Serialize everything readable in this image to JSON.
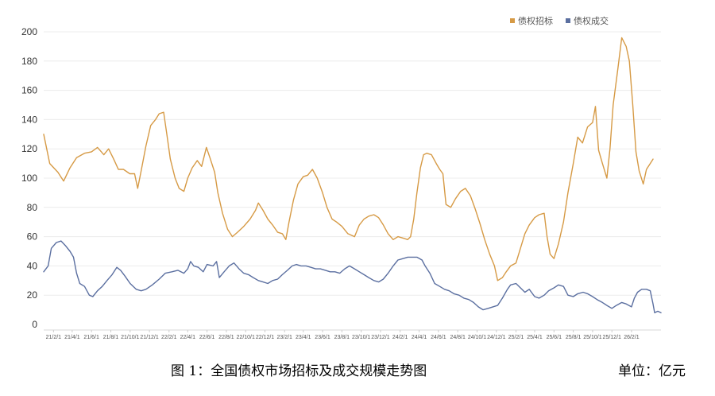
{
  "caption": {
    "title": "图 1：全国债权市场招标及成交规模走势图",
    "unit": "单位：亿元"
  },
  "chart_data": {
    "type": "line",
    "title": "",
    "xlabel": "",
    "ylabel": "",
    "ylim": [
      0,
      200
    ],
    "yticks": [
      0,
      20,
      40,
      60,
      80,
      100,
      120,
      140,
      160,
      180,
      200
    ],
    "grid": true,
    "legend_position": "top-right",
    "x_tick_labels": [
      "21/2/1",
      "21/4/1",
      "21/6/1",
      "21/8/1",
      "21/10/1",
      "21/12/1",
      "22/2/1",
      "22/4/1",
      "22/6/1",
      "22/8/1",
      "22/10/1",
      "22/12/1",
      "23/2/1",
      "23/4/1",
      "23/6/1",
      "23/8/1",
      "23/10/1",
      "23/12/1",
      "24/2/1",
      "24/4/1",
      "24/6/1",
      "24/8/1",
      "24/10/1",
      "24/12/1",
      "25/2/1",
      "25/4/1",
      "25/6/1",
      "25/8/1",
      "25/10/1",
      "25/12/1",
      "26/2/1"
    ],
    "series": [
      {
        "name": "债权招标",
        "color": "#D69A45",
        "points": [
          [
            "2021-01-01",
            130
          ],
          [
            "2021-01-20",
            110
          ],
          [
            "2021-02-15",
            104
          ],
          [
            "2021-03-05",
            98
          ],
          [
            "2021-03-25",
            107
          ],
          [
            "2021-04-15",
            114
          ],
          [
            "2021-05-10",
            117
          ],
          [
            "2021-06-01",
            118
          ],
          [
            "2021-06-20",
            121
          ],
          [
            "2021-07-10",
            116
          ],
          [
            "2021-07-25",
            120
          ],
          [
            "2021-08-10",
            113
          ],
          [
            "2021-08-25",
            106
          ],
          [
            "2021-09-10",
            106
          ],
          [
            "2021-09-30",
            103
          ],
          [
            "2021-10-15",
            103
          ],
          [
            "2021-10-25",
            93
          ],
          [
            "2021-11-05",
            105
          ],
          [
            "2021-11-20",
            122
          ],
          [
            "2021-12-05",
            136
          ],
          [
            "2021-12-20",
            140
          ],
          [
            "2022-01-01",
            144
          ],
          [
            "2022-01-15",
            145
          ],
          [
            "2022-01-25",
            130
          ],
          [
            "2022-02-05",
            113
          ],
          [
            "2022-02-20",
            100
          ],
          [
            "2022-03-05",
            93
          ],
          [
            "2022-03-20",
            91
          ],
          [
            "2022-04-01",
            100
          ],
          [
            "2022-04-15",
            107
          ],
          [
            "2022-05-01",
            112
          ],
          [
            "2022-05-15",
            108
          ],
          [
            "2022-05-30",
            121
          ],
          [
            "2022-06-10",
            114
          ],
          [
            "2022-06-25",
            104
          ],
          [
            "2022-07-05",
            90
          ],
          [
            "2022-07-20",
            76
          ],
          [
            "2022-08-05",
            65
          ],
          [
            "2022-08-20",
            60
          ],
          [
            "2022-09-05",
            63
          ],
          [
            "2022-09-25",
            67
          ],
          [
            "2022-10-15",
            72
          ],
          [
            "2022-11-01",
            78
          ],
          [
            "2022-11-10",
            83
          ],
          [
            "2022-11-25",
            78
          ],
          [
            "2022-12-10",
            72
          ],
          [
            "2022-12-25",
            68
          ],
          [
            "2023-01-10",
            63
          ],
          [
            "2023-01-25",
            62
          ],
          [
            "2023-02-05",
            58
          ],
          [
            "2023-02-15",
            70
          ],
          [
            "2023-03-01",
            85
          ],
          [
            "2023-03-15",
            96
          ],
          [
            "2023-04-01",
            101
          ],
          [
            "2023-04-15",
            102
          ],
          [
            "2023-04-30",
            106
          ],
          [
            "2023-05-15",
            100
          ],
          [
            "2023-06-01",
            90
          ],
          [
            "2023-06-15",
            80
          ],
          [
            "2023-07-01",
            72
          ],
          [
            "2023-07-15",
            70
          ],
          [
            "2023-08-01",
            67
          ],
          [
            "2023-08-20",
            62
          ],
          [
            "2023-09-10",
            60
          ],
          [
            "2023-09-25",
            68
          ],
          [
            "2023-10-10",
            72
          ],
          [
            "2023-10-25",
            74
          ],
          [
            "2023-11-10",
            75
          ],
          [
            "2023-11-25",
            73
          ],
          [
            "2023-12-10",
            68
          ],
          [
            "2023-12-25",
            62
          ],
          [
            "2024-01-10",
            58
          ],
          [
            "2024-01-25",
            60
          ],
          [
            "2024-02-10",
            59
          ],
          [
            "2024-02-25",
            58
          ],
          [
            "2024-03-05",
            60
          ],
          [
            "2024-03-15",
            72
          ],
          [
            "2024-03-25",
            90
          ],
          [
            "2024-04-05",
            107
          ],
          [
            "2024-04-15",
            116
          ],
          [
            "2024-04-25",
            117
          ],
          [
            "2024-05-10",
            116
          ],
          [
            "2024-05-25",
            110
          ],
          [
            "2024-06-05",
            106
          ],
          [
            "2024-06-15",
            103
          ],
          [
            "2024-06-25",
            82
          ],
          [
            "2024-07-10",
            80
          ],
          [
            "2024-07-25",
            86
          ],
          [
            "2024-08-10",
            91
          ],
          [
            "2024-08-25",
            93
          ],
          [
            "2024-09-10",
            88
          ],
          [
            "2024-09-25",
            79
          ],
          [
            "2024-10-10",
            69
          ],
          [
            "2024-10-25",
            58
          ],
          [
            "2024-11-10",
            48
          ],
          [
            "2024-11-25",
            40
          ],
          [
            "2024-12-05",
            30
          ],
          [
            "2024-12-20",
            32
          ],
          [
            "2025-01-01",
            36
          ],
          [
            "2025-01-15",
            40
          ],
          [
            "2025-02-01",
            42
          ],
          [
            "2025-02-15",
            52
          ],
          [
            "2025-03-01",
            62
          ],
          [
            "2025-03-15",
            68
          ],
          [
            "2025-04-01",
            73
          ],
          [
            "2025-04-15",
            75
          ],
          [
            "2025-05-01",
            76
          ],
          [
            "2025-05-10",
            60
          ],
          [
            "2025-05-20",
            48
          ],
          [
            "2025-06-01",
            45
          ],
          [
            "2025-06-15",
            55
          ],
          [
            "2025-07-01",
            70
          ],
          [
            "2025-07-15",
            90
          ],
          [
            "2025-08-01",
            110
          ],
          [
            "2025-08-15",
            128
          ],
          [
            "2025-08-30",
            124
          ],
          [
            "2025-09-15",
            135
          ],
          [
            "2025-10-01",
            138
          ],
          [
            "2025-10-10",
            149
          ],
          [
            "2025-10-20",
            119
          ],
          [
            "2025-11-01",
            110
          ],
          [
            "2025-11-15",
            100
          ],
          [
            "2025-11-25",
            120
          ],
          [
            "2025-12-05",
            150
          ],
          [
            "2025-12-20",
            175
          ],
          [
            "2026-01-01",
            196
          ],
          [
            "2026-01-15",
            190
          ],
          [
            "2026-01-25",
            180
          ],
          [
            "2026-02-05",
            150
          ],
          [
            "2026-02-15",
            118
          ],
          [
            "2026-02-25",
            105
          ],
          [
            "2026-03-10",
            96
          ],
          [
            "2026-03-20",
            106
          ],
          [
            "2026-04-01",
            110
          ],
          [
            "2026-04-10",
            113
          ]
        ]
      },
      {
        "name": "债权成交",
        "color": "#5B6FA0",
        "points": [
          [
            "2021-01-01",
            36
          ],
          [
            "2021-01-15",
            40
          ],
          [
            "2021-01-25",
            52
          ],
          [
            "2021-02-10",
            56
          ],
          [
            "2021-02-25",
            57
          ],
          [
            "2021-03-10",
            54
          ],
          [
            "2021-03-25",
            50
          ],
          [
            "2021-04-05",
            46
          ],
          [
            "2021-04-15",
            35
          ],
          [
            "2021-04-25",
            28
          ],
          [
            "2021-05-10",
            26
          ],
          [
            "2021-05-25",
            20
          ],
          [
            "2021-06-05",
            19
          ],
          [
            "2021-06-20",
            23
          ],
          [
            "2021-07-05",
            26
          ],
          [
            "2021-07-20",
            30
          ],
          [
            "2021-08-05",
            34
          ],
          [
            "2021-08-20",
            39
          ],
          [
            "2021-09-01",
            37
          ],
          [
            "2021-09-15",
            33
          ],
          [
            "2021-10-01",
            28
          ],
          [
            "2021-10-20",
            24
          ],
          [
            "2021-11-05",
            23
          ],
          [
            "2021-11-20",
            24
          ],
          [
            "2021-12-10",
            27
          ],
          [
            "2022-01-01",
            31
          ],
          [
            "2022-01-20",
            35
          ],
          [
            "2022-02-10",
            36
          ],
          [
            "2022-03-01",
            37
          ],
          [
            "2022-03-20",
            35
          ],
          [
            "2022-04-01",
            38
          ],
          [
            "2022-04-10",
            43
          ],
          [
            "2022-04-20",
            40
          ],
          [
            "2022-05-05",
            39
          ],
          [
            "2022-05-20",
            36
          ],
          [
            "2022-06-01",
            41
          ],
          [
            "2022-06-20",
            40
          ],
          [
            "2022-07-01",
            43
          ],
          [
            "2022-07-10",
            32
          ],
          [
            "2022-07-25",
            36
          ],
          [
            "2022-08-10",
            40
          ],
          [
            "2022-08-25",
            42
          ],
          [
            "2022-09-10",
            38
          ],
          [
            "2022-09-25",
            35
          ],
          [
            "2022-10-10",
            34
          ],
          [
            "2022-10-25",
            32
          ],
          [
            "2022-11-10",
            30
          ],
          [
            "2022-11-25",
            29
          ],
          [
            "2022-12-10",
            28
          ],
          [
            "2022-12-25",
            30
          ],
          [
            "2023-01-10",
            31
          ],
          [
            "2023-01-25",
            34
          ],
          [
            "2023-02-10",
            37
          ],
          [
            "2023-02-25",
            40
          ],
          [
            "2023-03-10",
            41
          ],
          [
            "2023-03-25",
            40
          ],
          [
            "2023-04-10",
            40
          ],
          [
            "2023-04-25",
            39
          ],
          [
            "2023-05-10",
            38
          ],
          [
            "2023-05-25",
            38
          ],
          [
            "2023-06-10",
            37
          ],
          [
            "2023-06-25",
            36
          ],
          [
            "2023-07-10",
            36
          ],
          [
            "2023-07-25",
            35
          ],
          [
            "2023-08-10",
            38
          ],
          [
            "2023-08-25",
            40
          ],
          [
            "2023-09-10",
            38
          ],
          [
            "2023-09-25",
            36
          ],
          [
            "2023-10-10",
            34
          ],
          [
            "2023-10-25",
            32
          ],
          [
            "2023-11-10",
            30
          ],
          [
            "2023-11-25",
            29
          ],
          [
            "2023-12-10",
            31
          ],
          [
            "2023-12-25",
            35
          ],
          [
            "2024-01-10",
            40
          ],
          [
            "2024-01-25",
            44
          ],
          [
            "2024-02-10",
            45
          ],
          [
            "2024-02-25",
            46
          ],
          [
            "2024-03-10",
            46
          ],
          [
            "2024-03-25",
            46
          ],
          [
            "2024-04-10",
            44
          ],
          [
            "2024-04-20",
            40
          ],
          [
            "2024-05-05",
            35
          ],
          [
            "2024-05-20",
            28
          ],
          [
            "2024-06-05",
            26
          ],
          [
            "2024-06-20",
            24
          ],
          [
            "2024-07-05",
            23
          ],
          [
            "2024-07-20",
            21
          ],
          [
            "2024-08-05",
            20
          ],
          [
            "2024-08-20",
            18
          ],
          [
            "2024-09-05",
            17
          ],
          [
            "2024-09-20",
            15
          ],
          [
            "2024-10-05",
            12
          ],
          [
            "2024-10-20",
            10
          ],
          [
            "2024-11-05",
            11
          ],
          [
            "2024-11-20",
            12
          ],
          [
            "2024-12-05",
            13
          ],
          [
            "2024-12-20",
            18
          ],
          [
            "2025-01-05",
            24
          ],
          [
            "2025-01-15",
            27
          ],
          [
            "2025-02-01",
            28
          ],
          [
            "2025-02-15",
            25
          ],
          [
            "2025-03-01",
            22
          ],
          [
            "2025-03-15",
            24
          ],
          [
            "2025-04-01",
            19
          ],
          [
            "2025-04-15",
            18
          ],
          [
            "2025-05-01",
            20
          ],
          [
            "2025-05-15",
            23
          ],
          [
            "2025-06-01",
            25
          ],
          [
            "2025-06-15",
            27
          ],
          [
            "2025-07-01",
            26
          ],
          [
            "2025-07-15",
            20
          ],
          [
            "2025-08-01",
            19
          ],
          [
            "2025-08-15",
            21
          ],
          [
            "2025-09-01",
            22
          ],
          [
            "2025-09-15",
            21
          ],
          [
            "2025-10-01",
            19
          ],
          [
            "2025-10-15",
            17
          ],
          [
            "2025-11-01",
            15
          ],
          [
            "2025-11-15",
            13
          ],
          [
            "2025-12-01",
            11
          ],
          [
            "2025-12-15",
            13
          ],
          [
            "2026-01-01",
            15
          ],
          [
            "2026-01-15",
            14
          ],
          [
            "2026-02-01",
            12
          ],
          [
            "2026-02-10",
            18
          ],
          [
            "2026-02-20",
            22
          ],
          [
            "2026-03-05",
            24
          ],
          [
            "2026-03-20",
            24
          ],
          [
            "2026-04-01",
            23
          ],
          [
            "2026-04-10",
            14
          ],
          [
            "2026-04-15",
            8
          ],
          [
            "2026-04-25",
            9
          ],
          [
            "2026-05-05",
            8
          ]
        ]
      }
    ]
  }
}
